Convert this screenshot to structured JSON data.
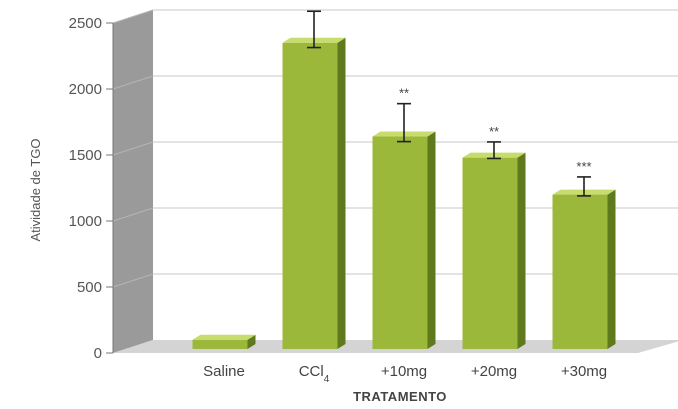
{
  "chart_data": {
    "type": "bar",
    "style": "3d",
    "categories": [
      {
        "label": "Saline",
        "sub": ""
      },
      {
        "label": "CCl",
        "sub": "4"
      },
      {
        "label": "+10mg",
        "sub": ""
      },
      {
        "label": "+20mg",
        "sub": ""
      },
      {
        "label": "+30mg",
        "sub": ""
      }
    ],
    "values": [
      100,
      2350,
      1640,
      1480,
      1200
    ],
    "errors": [
      0,
      220,
      230,
      100,
      115
    ],
    "significance": [
      "",
      "",
      "**",
      "**",
      "***"
    ],
    "ylabel": "Atividade de TGO",
    "xlabel": "TRATAMENTO",
    "ylim": [
      0,
      2500
    ],
    "yticks": [
      0,
      500,
      1000,
      1500,
      2000,
      2500
    ],
    "grid": true,
    "colors": {
      "bar_front": "#9cb83a",
      "bar_top": "#c8dc6e",
      "bar_side": "#5f7a1c",
      "back_wall": "#ffffff",
      "side_wall": "#9a9a9a",
      "floor": "#d4d4d4",
      "grid": "#c8c8c8"
    }
  }
}
